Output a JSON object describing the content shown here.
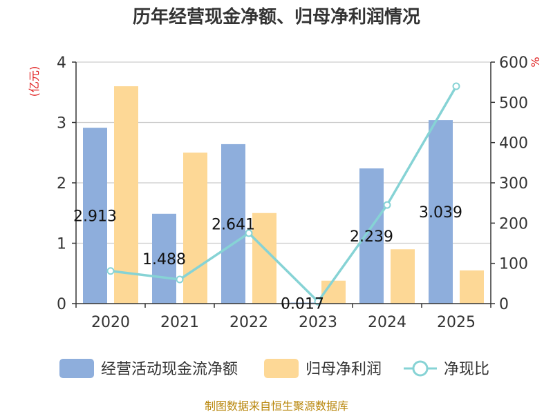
{
  "chart_data": {
    "type": "bar",
    "title": "历年经营现金净额、归母净利润情况",
    "categories": [
      "2020",
      "2021",
      "2022",
      "2023",
      "2024",
      "2025"
    ],
    "left_axis": {
      "unit": "(亿元)",
      "ylim": [
        0,
        4
      ],
      "ticks": [
        "0",
        "1",
        "2",
        "3",
        "4"
      ]
    },
    "right_axis": {
      "unit": "%",
      "ylim": [
        0,
        600
      ],
      "ticks": [
        "0",
        "100",
        "200",
        "300",
        "400",
        "500",
        "600"
      ]
    },
    "series": [
      {
        "name": "经营活动现金流净额",
        "type": "bar",
        "axis": "left",
        "color": "#8eaedc",
        "values": [
          2.913,
          1.488,
          2.641,
          0.017,
          2.239,
          3.039
        ],
        "labels": [
          "2.913",
          "1.488",
          "2.641",
          "0.017",
          "2.239",
          "3.039"
        ]
      },
      {
        "name": "归母净利润",
        "type": "bar",
        "axis": "left",
        "color": "#fdd896",
        "values": [
          3.6,
          2.5,
          1.5,
          0.38,
          0.9,
          0.55
        ]
      },
      {
        "name": "净现比",
        "type": "line",
        "axis": "right",
        "color": "#86d3d5",
        "values": [
          81,
          60,
          175,
          5,
          245,
          540
        ]
      }
    ],
    "legend_position": "bottom",
    "grid": true
  },
  "source_text": "制图数据来自恒生聚源数据库"
}
